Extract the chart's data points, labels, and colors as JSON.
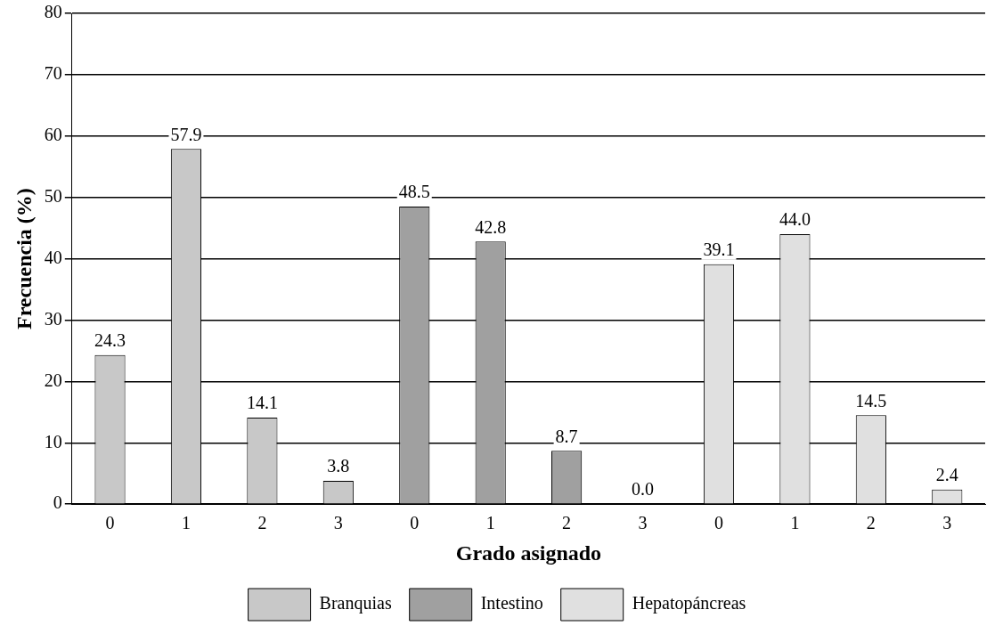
{
  "chart_data": {
    "type": "bar",
    "xlabel": "Grado asignado",
    "ylabel": "Frecuencia (%)",
    "categories": [
      "0",
      "1",
      "2",
      "3",
      "0",
      "1",
      "2",
      "3",
      "0",
      "1",
      "2",
      "3"
    ],
    "series": [
      {
        "name": "Branquias",
        "color": "#c8c8c8",
        "values": [
          24.3,
          57.9,
          14.1,
          3.8,
          null,
          null,
          null,
          null,
          null,
          null,
          null,
          null
        ],
        "value_labels": [
          "24.3",
          "57.9",
          "14.1",
          "3.8",
          null,
          null,
          null,
          null,
          null,
          null,
          null,
          null
        ]
      },
      {
        "name": "Intestino",
        "color": "#a0a0a0",
        "values": [
          null,
          null,
          null,
          null,
          48.5,
          42.8,
          8.7,
          0,
          null,
          null,
          null,
          null
        ],
        "value_labels": [
          null,
          null,
          null,
          null,
          "48.5",
          "42.8",
          "8.7",
          "0.0",
          null,
          null,
          null,
          null
        ]
      },
      {
        "name": "Hepatopáncreas",
        "color": "#e0e0e0",
        "values": [
          null,
          null,
          null,
          null,
          null,
          null,
          null,
          null,
          39.1,
          44.0,
          14.5,
          2.4
        ],
        "value_labels": [
          null,
          null,
          null,
          null,
          null,
          null,
          null,
          null,
          "39.1",
          "44.0",
          "14.5",
          "2.4"
        ]
      }
    ],
    "ylim": [
      0,
      80
    ],
    "yticks": [
      0,
      10,
      20,
      30,
      40,
      50,
      60,
      70,
      80
    ],
    "grid": "y",
    "legend": "bottom"
  }
}
